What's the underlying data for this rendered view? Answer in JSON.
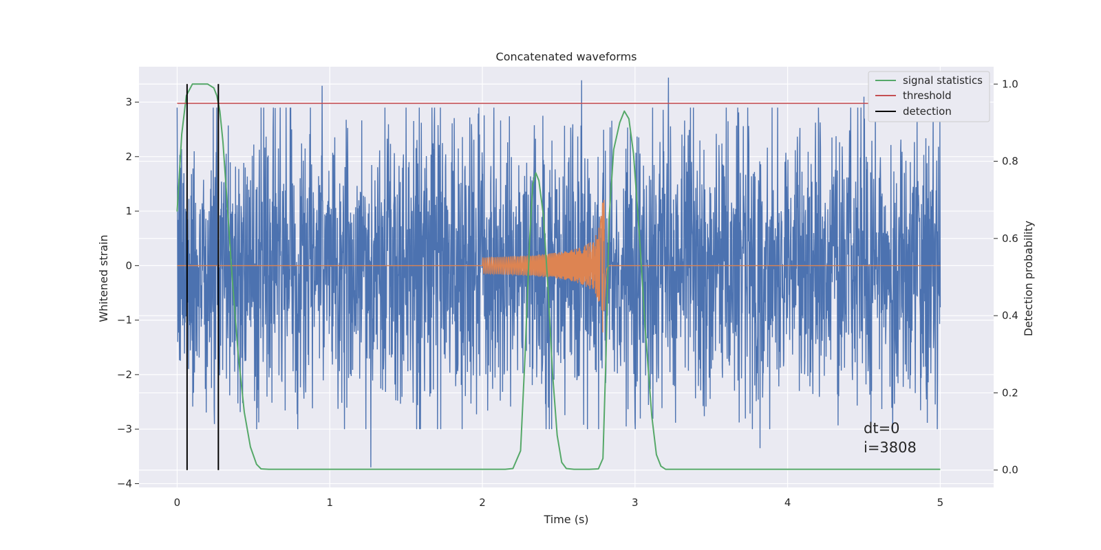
{
  "chart_data": {
    "type": "line",
    "title": "Concatenated waveforms",
    "xlabel": "Time (s)",
    "ylabel": "Whitened strain",
    "y2label": "Detection probability",
    "xlim": [
      -0.25,
      5.35
    ],
    "ylim": [
      -4.07,
      3.65
    ],
    "y2lim": [
      -0.045,
      1.045
    ],
    "xticks": [
      0,
      1,
      2,
      3,
      4,
      5
    ],
    "yticks": [
      -4,
      -3,
      -2,
      -1,
      0,
      1,
      2,
      3
    ],
    "y2ticks": [
      0.0,
      0.2,
      0.4,
      0.6,
      0.8,
      1.0
    ],
    "xtick_labels": [
      "0",
      "1",
      "2",
      "3",
      "4",
      "5"
    ],
    "ytick_labels": [
      "−4",
      "−3",
      "−2",
      "−1",
      "0",
      "1",
      "2",
      "3"
    ],
    "y2tick_labels": [
      "0.0",
      "0.2",
      "0.4",
      "0.6",
      "0.8",
      "1.0"
    ],
    "grid": true,
    "legend_position": "top-right",
    "legend": [
      {
        "label": "signal statistics",
        "color": "#55a868"
      },
      {
        "label": "threshold",
        "color": "#c44e52"
      },
      {
        "label": "detection",
        "color": "#000000"
      }
    ],
    "series": [
      {
        "kind": "noise",
        "axis": "left",
        "color": "#4c72b0",
        "x_range": [
          0,
          5
        ],
        "typical_envelope": [
          -2.0,
          2.0
        ],
        "peaks": [
          {
            "x": 0.95,
            "y": 3.3
          },
          {
            "x": 1.27,
            "y": -3.7
          },
          {
            "x": 2.65,
            "y": 3.4
          },
          {
            "x": 3.22,
            "y": 3.45
          },
          {
            "x": 3.82,
            "y": -3.35
          },
          {
            "x": 4.5,
            "y": 3.1
          }
        ]
      },
      {
        "kind": "chirp",
        "axis": "left",
        "color": "#dd8452",
        "x_range": [
          0,
          5
        ],
        "chirp_start": 2.0,
        "merger": 2.8,
        "start_amplitude": 0.15,
        "peak_amplitude": 1.25
      },
      {
        "name": "signal statistics",
        "axis": "right",
        "color": "#55a868",
        "x": [
          0.0,
          0.03,
          0.06,
          0.1,
          0.15,
          0.2,
          0.24,
          0.26,
          0.28,
          0.3,
          0.33,
          0.36,
          0.4,
          0.44,
          0.48,
          0.52,
          0.55,
          0.6,
          1.0,
          1.5,
          2.0,
          2.15,
          2.2,
          2.25,
          2.28,
          2.31,
          2.33,
          2.35,
          2.37,
          2.4,
          2.43,
          2.46,
          2.49,
          2.52,
          2.55,
          2.6,
          2.7,
          2.76,
          2.79,
          2.81,
          2.83,
          2.86,
          2.9,
          2.93,
          2.96,
          2.99,
          3.03,
          3.07,
          3.11,
          3.14,
          3.17,
          3.2,
          3.4,
          4.0,
          4.5,
          5.0
        ],
        "y": [
          0.67,
          0.87,
          0.97,
          1.0,
          1.0,
          1.0,
          0.99,
          0.97,
          0.93,
          0.85,
          0.68,
          0.5,
          0.3,
          0.15,
          0.06,
          0.015,
          0.003,
          0.002,
          0.002,
          0.002,
          0.002,
          0.002,
          0.004,
          0.05,
          0.3,
          0.6,
          0.74,
          0.77,
          0.75,
          0.66,
          0.47,
          0.25,
          0.09,
          0.02,
          0.004,
          0.002,
          0.002,
          0.003,
          0.03,
          0.3,
          0.65,
          0.83,
          0.9,
          0.93,
          0.91,
          0.82,
          0.6,
          0.35,
          0.14,
          0.04,
          0.01,
          0.002,
          0.002,
          0.002,
          0.002,
          0.002
        ]
      },
      {
        "name": "threshold",
        "axis": "right",
        "color": "#c44e52",
        "x": [
          0,
          5.1
        ],
        "y": [
          0.95,
          0.95
        ]
      },
      {
        "name": "detection",
        "axis": "right",
        "color": "#000000",
        "type": "vlines",
        "x": [
          0.065,
          0.27
        ],
        "y_range": [
          0.0,
          1.0
        ]
      }
    ],
    "annotations": [
      "dt=0",
      "i=3808"
    ]
  }
}
